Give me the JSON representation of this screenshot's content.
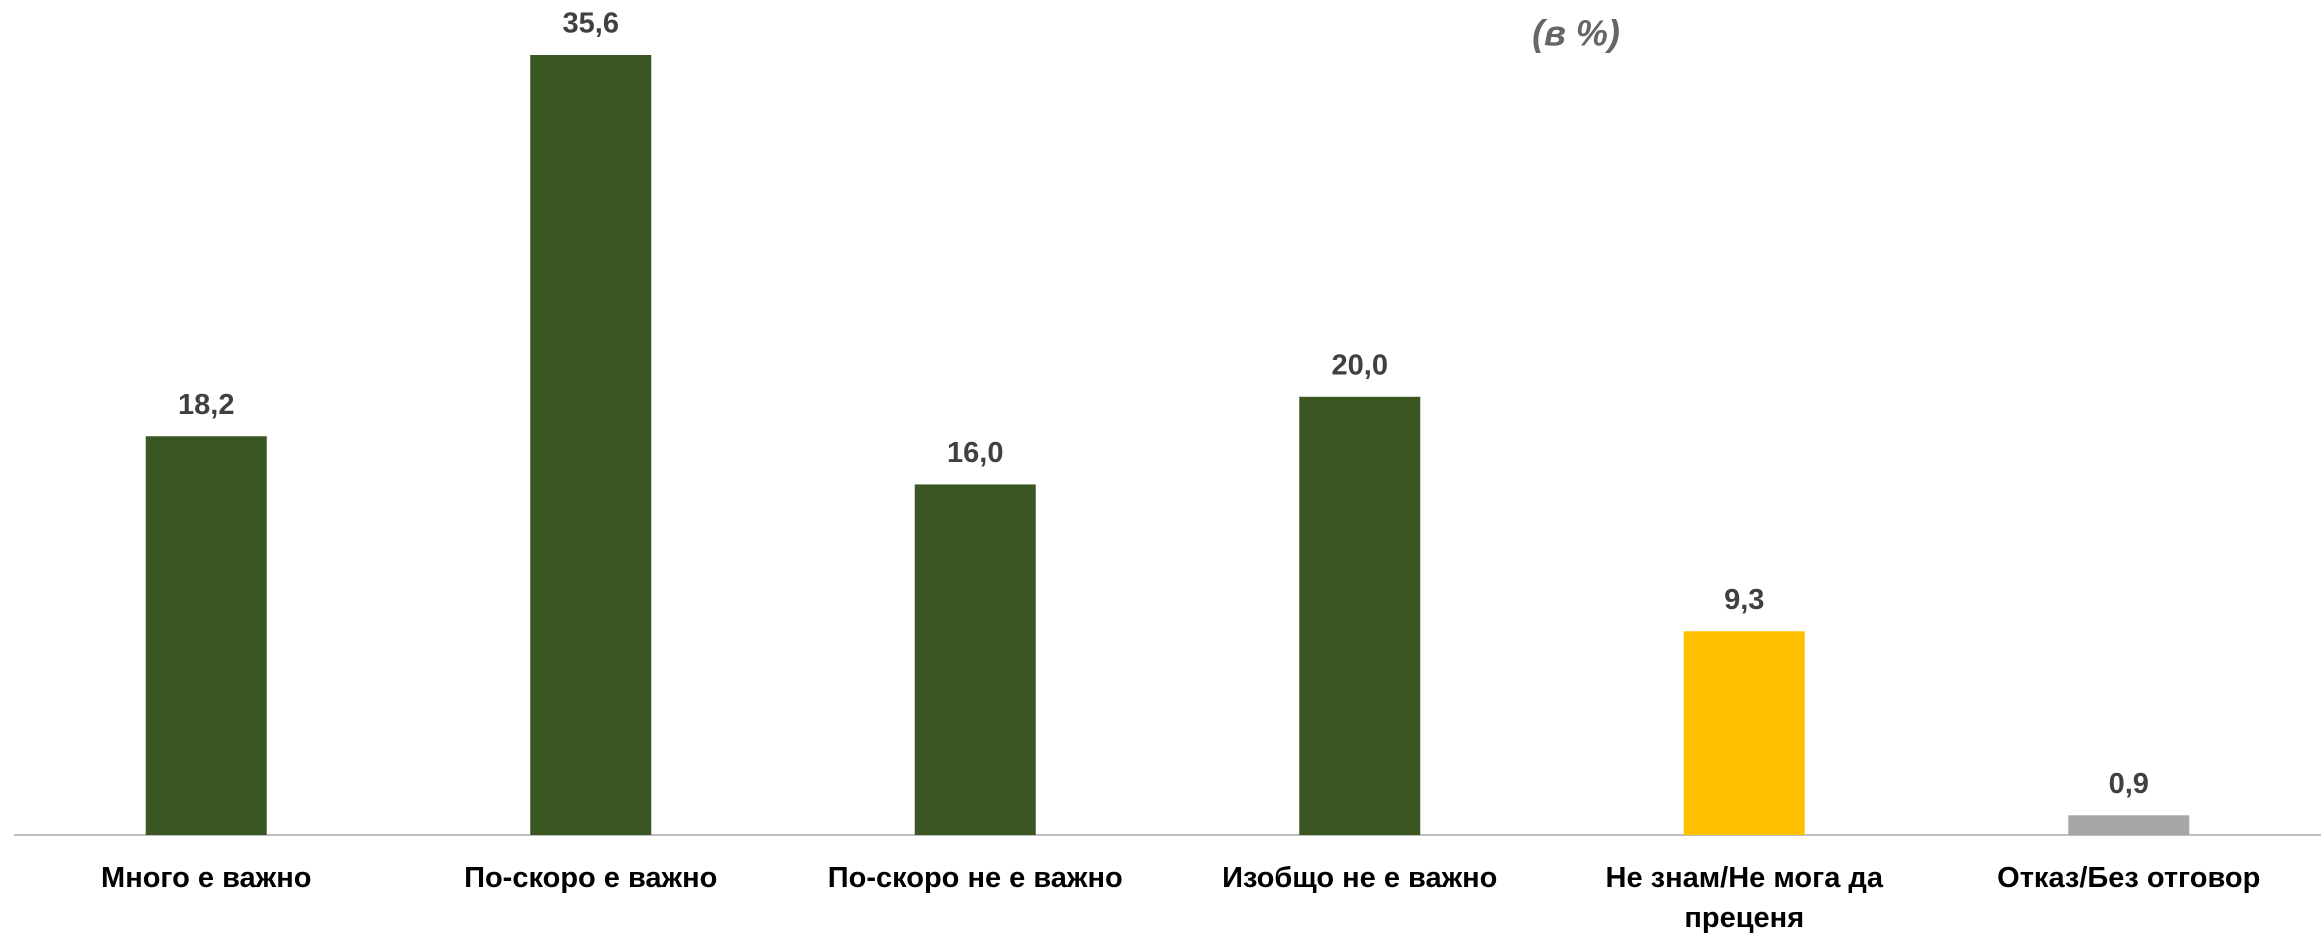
{
  "chart_data": {
    "type": "bar",
    "subtitle": "(в %)",
    "categories": [
      "Много е важно",
      "По-скоро е важно",
      "По-скоро не е важно",
      "Изобщо не е важно",
      "Не знам/Не мога да преценя",
      "Отказ/Без отговор"
    ],
    "values": [
      18.2,
      35.6,
      16.0,
      20.0,
      9.3,
      0.9
    ],
    "value_labels": [
      "18,2",
      "35,6",
      "16,0",
      "20,0",
      "9,3",
      "0,9"
    ],
    "colors": [
      "#3a5723",
      "#3a5723",
      "#3a5723",
      "#3a5723",
      "#ffc000",
      "#a6a6a6"
    ]
  }
}
